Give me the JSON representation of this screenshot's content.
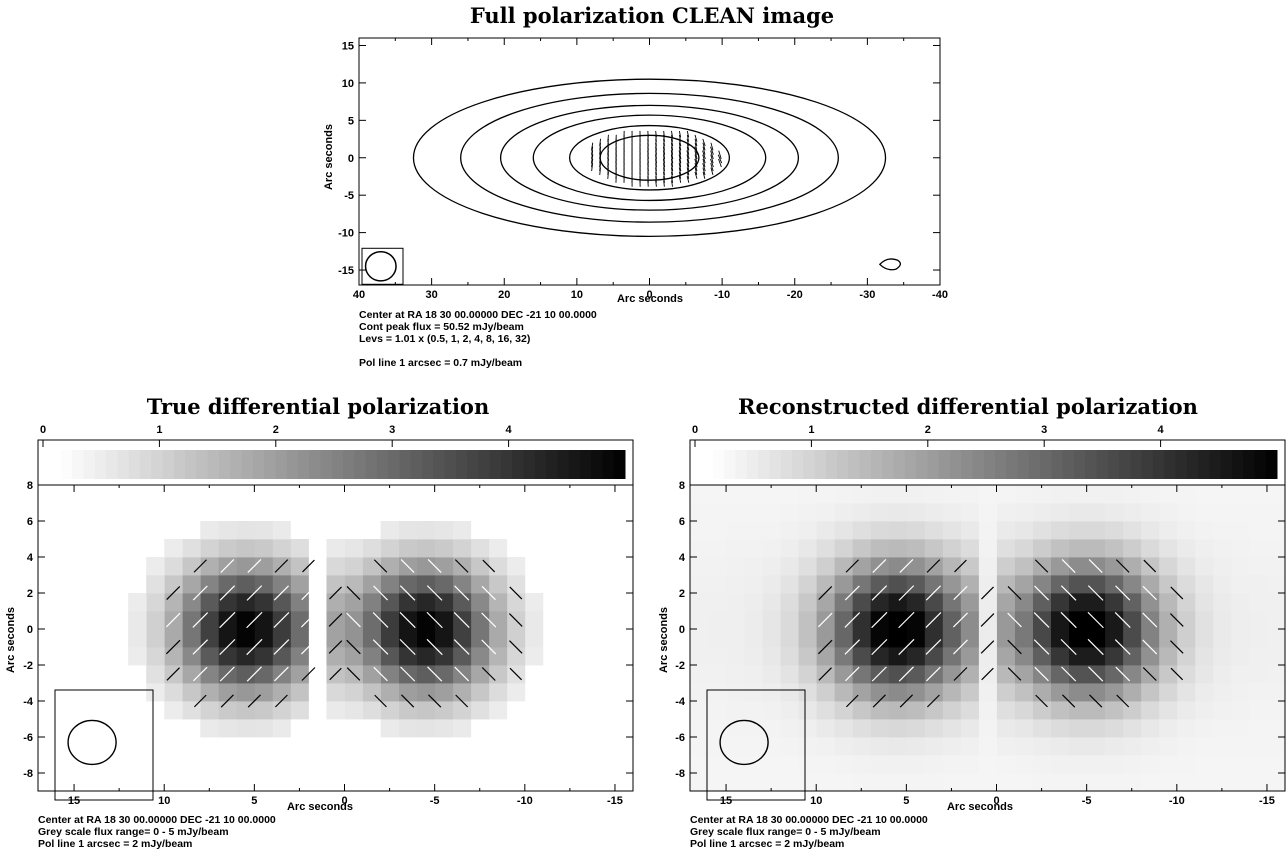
{
  "chart_data": [
    {
      "type": "heatmap",
      "title": "Full polarization CLEAN image",
      "xlabel": "Arc seconds",
      "ylabel": "Arc seconds",
      "xlim": [
        40,
        -40
      ],
      "ylim": [
        -17,
        16
      ],
      "xticks": [
        40,
        30,
        20,
        10,
        0,
        -10,
        -20,
        -30,
        -40
      ],
      "yticks": [
        15,
        10,
        5,
        0,
        -5,
        -10,
        -15
      ],
      "xtick_labels": [
        "40",
        "30",
        "20",
        "10",
        "0",
        "-10",
        "-20",
        "-30",
        "-40"
      ],
      "ytick_labels": [
        "15",
        "10",
        "5",
        "0",
        "-5",
        "-10",
        "-15"
      ],
      "contour_levels": [
        0.5,
        1,
        2,
        4,
        8,
        16,
        32
      ],
      "contour_semi_axes": [
        [
          32.5,
          10.5
        ],
        [
          26.0,
          8.6
        ],
        [
          20.5,
          7.0
        ],
        [
          16.0,
          5.7
        ],
        [
          11.0,
          4.3
        ],
        [
          6.8,
          3.0
        ]
      ],
      "contour_island": {
        "x": -33.5,
        "y": -14.5
      },
      "beam": {
        "x": 37,
        "y": -14.5,
        "bmaj": 1.5,
        "bmin": 1.3
      },
      "pol_vectors": {
        "region_x": [
          9,
          -10
        ],
        "region_y": [
          -4,
          4
        ],
        "angle_left_deg": 80,
        "angle_right_deg": 110
      },
      "footer": [
        "Center at RA 18 30 00.00000  DEC -21 10 00.0000",
        "Cont peak flux =  50.52 mJy/beam",
        "Levs = 1.01 x (0.5, 1, 2, 4, 8, 16, 32)",
        "Pol line 1 arcsec =  0.7 mJy/beam"
      ]
    },
    {
      "type": "heatmap",
      "title": "True differential polarization",
      "xlabel": "Arc seconds",
      "ylabel": "Arc seconds",
      "xlim": [
        17,
        -16
      ],
      "ylim": [
        -9,
        8
      ],
      "xticks": [
        15,
        10,
        5,
        0,
        -5,
        -10,
        -15
      ],
      "yticks": [
        8,
        6,
        4,
        2,
        0,
        -2,
        -4,
        -6,
        -8
      ],
      "xtick_labels": [
        "15",
        "10",
        "5",
        "0",
        "-5",
        "-10",
        "-15"
      ],
      "ytick_labels": [
        "8",
        "6",
        "4",
        "2",
        "0",
        "-2",
        "-4",
        "-6",
        "-8"
      ],
      "colorbar": {
        "range": [
          0,
          5
        ],
        "ticks": [
          0,
          1,
          2,
          3,
          4
        ],
        "tick_labels": [
          "0",
          "1",
          "2",
          "3",
          "4"
        ]
      },
      "lobes": [
        {
          "x": 5.5,
          "y": 0,
          "peak": 5.0,
          "pol_angle_deg": 45
        },
        {
          "x": -4.5,
          "y": 0,
          "peak": 5.0,
          "pol_angle_deg": 135
        }
      ],
      "gap_x": 1.5,
      "background": "blank",
      "beam": {
        "x": 14,
        "y": -6.3,
        "bmaj": 1.8,
        "bmin": 1.5
      },
      "footer": [
        "Center at RA 18 30 00.00000  DEC -21 10 00.0000",
        "Grey scale flux range= 0 - 5 mJy/beam",
        "Pol line 1 arcsec =  2 mJy/beam"
      ]
    },
    {
      "type": "heatmap",
      "title": "Reconstructed differential polarization",
      "xlabel": "Arc seconds",
      "ylabel": "Arc seconds",
      "xlim": [
        17,
        -16
      ],
      "ylim": [
        -9,
        8
      ],
      "xticks": [
        15,
        10,
        5,
        0,
        -5,
        -10,
        -15
      ],
      "yticks": [
        8,
        6,
        4,
        2,
        0,
        -2,
        -4,
        -6,
        -8
      ],
      "xtick_labels": [
        "15",
        "10",
        "5",
        "0",
        "-5",
        "-10",
        "-15"
      ],
      "ytick_labels": [
        "8",
        "6",
        "4",
        "2",
        "0",
        "-2",
        "-4",
        "-6",
        "-8"
      ],
      "colorbar": {
        "range": [
          0,
          5
        ],
        "ticks": [
          0,
          1,
          2,
          3,
          4
        ],
        "tick_labels": [
          "0",
          "1",
          "2",
          "3",
          "4"
        ]
      },
      "lobes": [
        {
          "x": 5.5,
          "y": 0,
          "peak": 5.0,
          "pol_angle_deg": 45
        },
        {
          "x": -5,
          "y": 0,
          "peak": 5.0,
          "pol_angle_deg": 135
        }
      ],
      "gap_x": 0.5,
      "background": "faint",
      "beam": {
        "x": 14,
        "y": -6.3,
        "bmaj": 1.8,
        "bmin": 1.5
      },
      "footer": [
        "Center at RA 18 30 00.00000  DEC -21 10 00.0000",
        "Grey scale flux range= 0 - 5 mJy/beam",
        "Pol line 1 arcsec =  2 mJy/beam"
      ]
    }
  ]
}
